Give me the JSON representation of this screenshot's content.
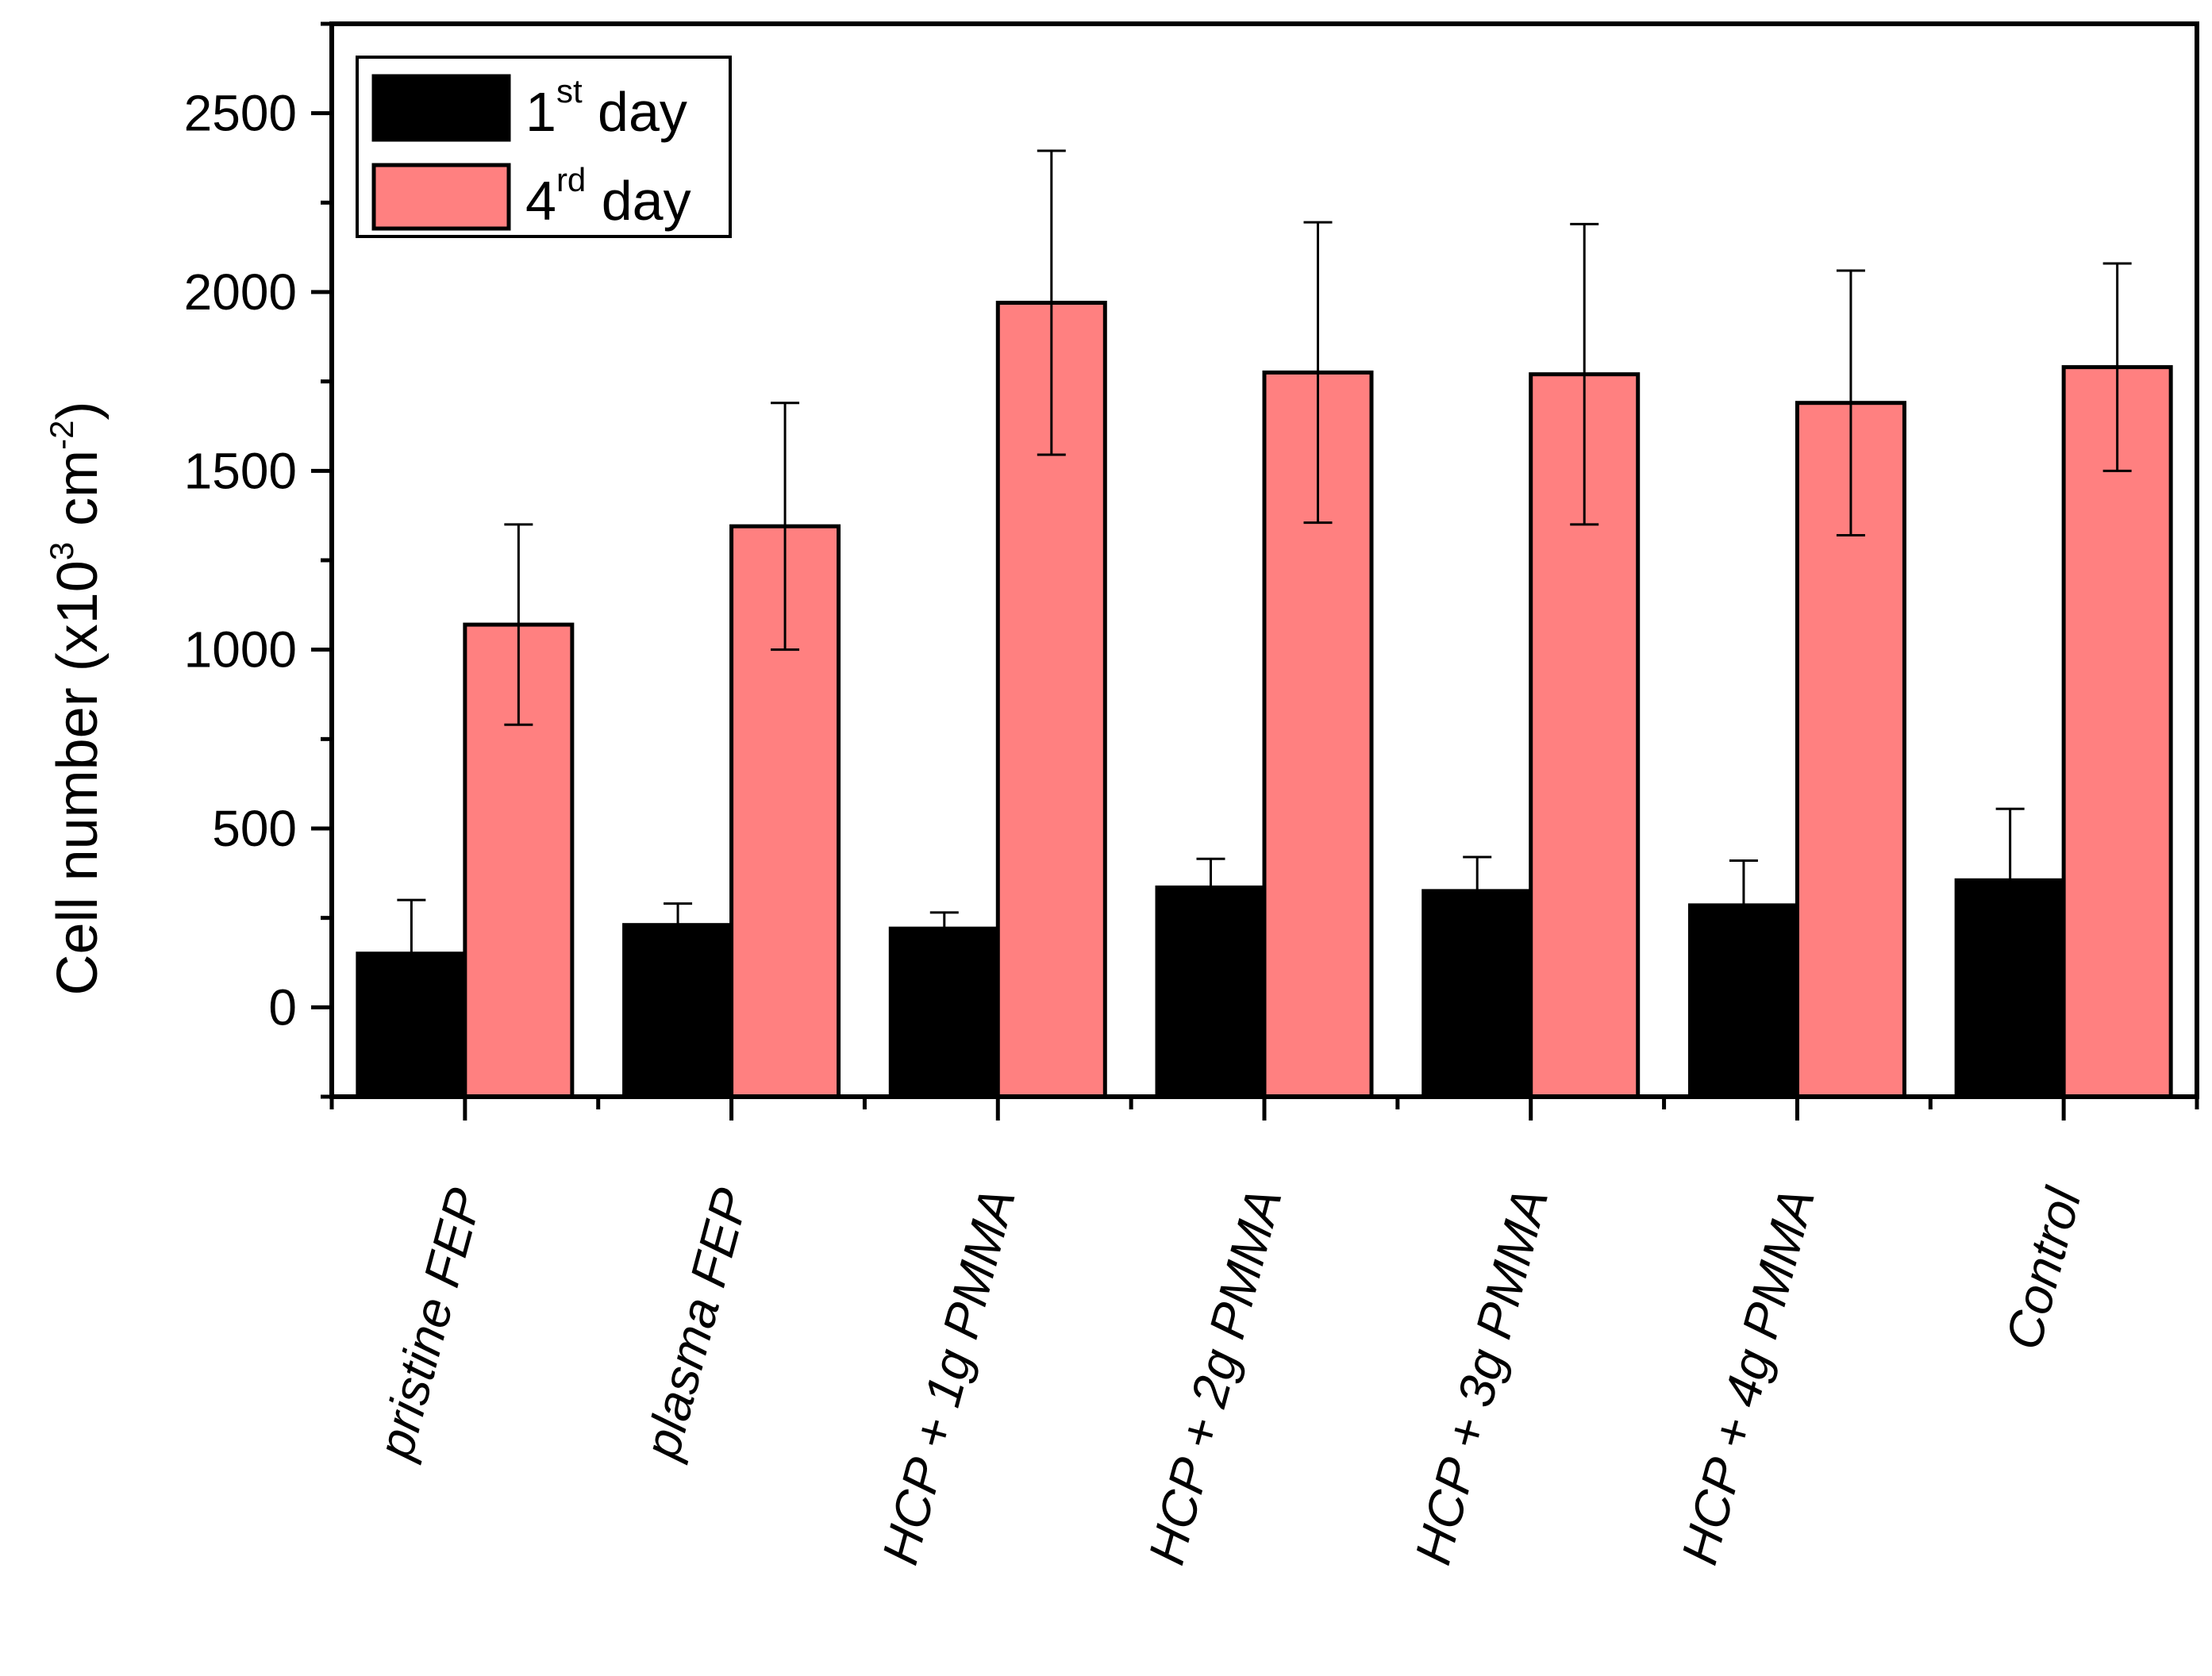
{
  "chart_data": {
    "type": "bar",
    "title": "",
    "xlabel": "",
    "ylabel": {
      "main": "Cell number (x10",
      "exp1": "3",
      "unit": " cm",
      "exp2": "-2",
      "close": ")"
    },
    "ylim": [
      -250,
      2750
    ],
    "yticks": [
      0,
      500,
      1000,
      1500,
      2000,
      2500
    ],
    "grid": false,
    "legend_position": "top-left",
    "categories": [
      "pristine FEP",
      "plasma FEP",
      "HCP + 1g PMMA",
      "HCP + 2g PMMA",
      "HCP + 3g PMMA",
      "HCP + 4g PMMA",
      "Control"
    ],
    "series": [
      {
        "name": "1st day",
        "legend_base": "1",
        "legend_sup": "st",
        "legend_rest": " day",
        "color": "#000000",
        "values": [
          150,
          230,
          220,
          335,
          325,
          285,
          355
        ],
        "errors": [
          150,
          60,
          45,
          80,
          95,
          125,
          200
        ]
      },
      {
        "name": "4rd day",
        "legend_base": "4",
        "legend_sup": "rd",
        "legend_rest": " day",
        "color": "#ff8080",
        "values": [
          1070,
          1345,
          1970,
          1775,
          1770,
          1690,
          1790
        ],
        "errors": [
          280,
          345,
          425,
          420,
          420,
          370,
          290
        ]
      }
    ]
  }
}
